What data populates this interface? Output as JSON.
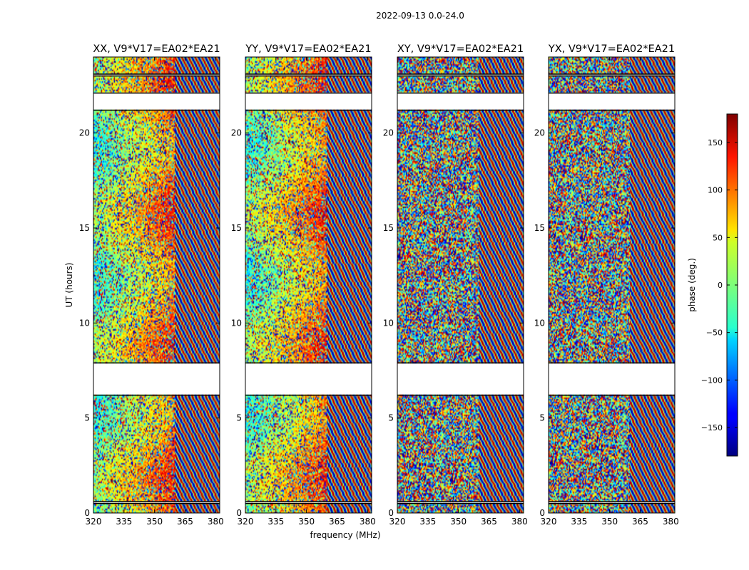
{
  "figure": {
    "suptitle": "2022-09-13 0.0-24.0",
    "ylabel": "UT (hours)",
    "xlabel": "frequency (MHz)"
  },
  "colors": {
    "colormap": "jet",
    "frame": "#000000",
    "background": "#ffffff",
    "flag_line": "#000000"
  },
  "chart_data": {
    "type": "heatmap",
    "description_kind": "dynamic spectrum (phase vs frequency and time)",
    "panels": [
      {
        "title": "XX, V9*V17=EA02*EA21",
        "pol": "XX",
        "phase_slope": 1.0
      },
      {
        "title": "YY, V9*V17=EA02*EA21",
        "pol": "YY",
        "phase_slope": 1.0
      },
      {
        "title": "XY, V9*V17=EA02*EA21",
        "pol": "XY",
        "phase_slope": 0.0
      },
      {
        "title": "YX, V9*V17=EA02*EA21",
        "pol": "YX",
        "phase_slope": 0.0
      }
    ],
    "x": {
      "label": "frequency (MHz)",
      "range": [
        320,
        382
      ],
      "ticks": [
        320,
        335,
        350,
        365,
        380
      ],
      "tick_labels": [
        "320",
        "335",
        "350",
        "365",
        "380"
      ]
    },
    "y": {
      "label": "UT (hours)",
      "range": [
        0,
        24
      ],
      "ticks": [
        0,
        5,
        10,
        15,
        20
      ],
      "tick_labels": [
        "0",
        "5",
        "10",
        "15",
        "20"
      ]
    },
    "colorbar": {
      "label": "phase (deg.)",
      "range": [
        -180,
        180
      ],
      "ticks": [
        -150,
        -100,
        -50,
        0,
        50,
        100,
        150
      ],
      "tick_labels": [
        "−150",
        "−100",
        "−50",
        "0",
        "50",
        "100",
        "150"
      ]
    },
    "flagged_time_ranges": [
      [
        0.5,
        0.6
      ],
      [
        6.2,
        7.9
      ],
      [
        21.2,
        22.1
      ],
      [
        23.0,
        23.1
      ]
    ],
    "coherent_band_MHz": [
      320,
      360
    ],
    "rfi_fringe_band_MHz": [
      360,
      382
    ]
  }
}
